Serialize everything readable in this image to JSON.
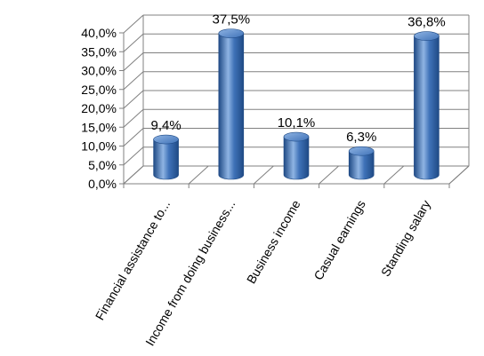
{
  "chart_data": {
    "type": "bar",
    "style": "3d-cylinder",
    "categories": [
      "Financial assistance to...",
      "Income from doing business...",
      "Business income",
      "Casual earnings",
      "Standing salary"
    ],
    "values": [
      9.4,
      37.5,
      10.1,
      6.3,
      36.8
    ],
    "data_labels": [
      "9,4%",
      "37,5%",
      "10,1%",
      "6,3%",
      "36,8%"
    ],
    "y_ticks": [
      "0,0%",
      "5,0%",
      "10,0%",
      "15,0%",
      "20,0%",
      "25,0%",
      "30,0%",
      "35,0%",
      "40,0%"
    ],
    "ylim": [
      0,
      40
    ],
    "grid": true,
    "legend": "none",
    "colors": {
      "bar": "#3f72b8",
      "bar_dark": "#1f4a85",
      "bar_light": "#8fb4e3",
      "grid": "#808080"
    }
  }
}
